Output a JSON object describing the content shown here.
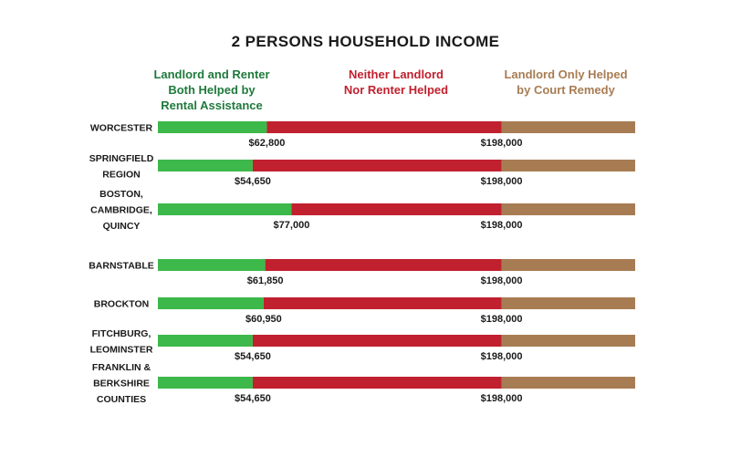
{
  "chart_data": {
    "type": "bar",
    "title": "2 PERSONS HOUSEHOLD INCOME",
    "legend": [
      {
        "label": "Landlord and Renter\nBoth Helped by\nRental Assistance",
        "color": "#3db84a",
        "text_color": "#1f7a3c"
      },
      {
        "label": "Neither Landlord\nNor Renter Helped",
        "color": "#c1202f",
        "text_color": "#c1202f"
      },
      {
        "label": "Landlord Only Helped\nby Court Remedy",
        "color": "#a87c53",
        "text_color": "#a87c53"
      }
    ],
    "xlim": [
      0,
      275000
    ],
    "rows": [
      {
        "region": [
          "WORCESTER"
        ],
        "low": 62800,
        "high": 198000,
        "low_label": "$62,800",
        "high_label": "$198,000"
      },
      {
        "region": [
          "SPRINGFIELD",
          "REGION"
        ],
        "low": 54650,
        "high": 198000,
        "low_label": "$54,650",
        "high_label": "$198,000"
      },
      {
        "region": [
          "BOSTON,",
          "CAMBRIDGE,",
          "QUINCY"
        ],
        "low": 77000,
        "high": 198000,
        "low_label": "$77,000",
        "high_label": "$198,000"
      },
      {
        "region": [
          "BARNSTABLE"
        ],
        "low": 61850,
        "high": 198000,
        "low_label": "$61,850",
        "high_label": "$198,000"
      },
      {
        "region": [
          "BROCKTON"
        ],
        "low": 60950,
        "high": 198000,
        "low_label": "$60,950",
        "high_label": "$198,000"
      },
      {
        "region": [
          "FITCHBURG,",
          "LEOMINSTER"
        ],
        "low": 54650,
        "high": 198000,
        "low_label": "$54,650",
        "high_label": "$198,000"
      },
      {
        "region": [
          "FRANKLIN &",
          "BERKSHIRE",
          "COUNTIES"
        ],
        "low": 54650,
        "high": 198000,
        "low_label": "$54,650",
        "high_label": "$198,000"
      }
    ]
  }
}
